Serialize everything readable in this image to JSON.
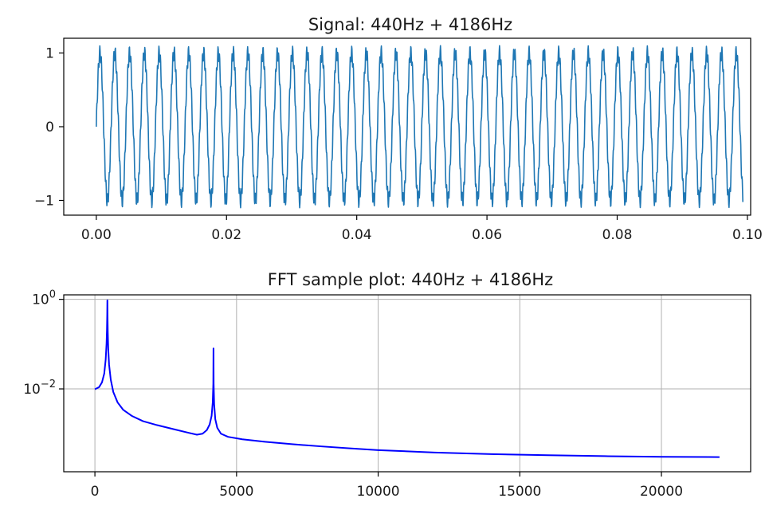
{
  "chart_data": [
    {
      "type": "line",
      "title": "Signal: 440Hz + 4186Hz",
      "xlabel": "",
      "ylabel": "",
      "xlim": [
        -0.005,
        0.1005
      ],
      "ylim": [
        -1.2,
        1.2
      ],
      "grid": false,
      "x_ticks": [
        0.0,
        0.02,
        0.04,
        0.06,
        0.08,
        0.1
      ],
      "x_tick_labels": [
        "0.00",
        "0.02",
        "0.04",
        "0.06",
        "0.08",
        "0.10"
      ],
      "y_ticks": [
        1,
        0,
        -1
      ],
      "y_tick_labels": [
        "1",
        "0",
        "−1"
      ],
      "line_color": "#1f77b4",
      "series": [
        {
          "x_range": [
            0,
            0.0993
          ],
          "components": [
            {
              "frequency_hz": 440,
              "amplitude": 1.0
            },
            {
              "frequency_hz": 4186,
              "amplitude": 0.1
            }
          ]
        }
      ]
    },
    {
      "type": "line",
      "title": "FFT sample plot: 440Hz + 4186Hz",
      "xlabel": "",
      "ylabel": "",
      "xlim": [
        -1100,
        23150
      ],
      "ylim_log10": [
        -3.85,
        0.1
      ],
      "yscale": "log",
      "grid": true,
      "x_ticks": [
        0,
        5000,
        10000,
        15000,
        20000
      ],
      "x_tick_labels": [
        "0",
        "5000",
        "10000",
        "15000",
        "20000"
      ],
      "y_ticks": [
        1,
        0.01
      ],
      "y_tick_labels": [
        {
          "base": "10",
          "exp": "0"
        },
        {
          "base": "10",
          "exp": "−2"
        }
      ],
      "line_color": "#0000ff",
      "series": [
        {
          "x": [
            0,
            150,
            250,
            330,
            380,
            410,
            425,
            435,
            440,
            445,
            455,
            470,
            500,
            560,
            650,
            800,
            1000,
            1300,
            1700,
            2200,
            2800,
            3300,
            3600,
            3800,
            3950,
            4050,
            4120,
            4160,
            4180,
            4186,
            4192,
            4210,
            4250,
            4320,
            4450,
            4700,
            5200,
            6000,
            7000,
            8000,
            9000,
            10000,
            12000,
            14000,
            16000,
            18000,
            20000,
            22050
          ],
          "y": [
            0.0098,
            0.011,
            0.014,
            0.022,
            0.045,
            0.1,
            0.2,
            0.45,
            0.95,
            0.45,
            0.18,
            0.08,
            0.035,
            0.016,
            0.0085,
            0.005,
            0.0034,
            0.0025,
            0.0019,
            0.00155,
            0.00125,
            0.00105,
            0.00095,
            0.001,
            0.0012,
            0.0016,
            0.0025,
            0.005,
            0.013,
            0.08,
            0.013,
            0.0045,
            0.0021,
            0.00135,
            0.001,
            0.00085,
            0.00075,
            0.00066,
            0.00058,
            0.00052,
            0.00047,
            0.00043,
            0.00038,
            0.00035,
            0.00033,
            0.000315,
            0.000305,
            0.0003
          ]
        }
      ]
    }
  ]
}
